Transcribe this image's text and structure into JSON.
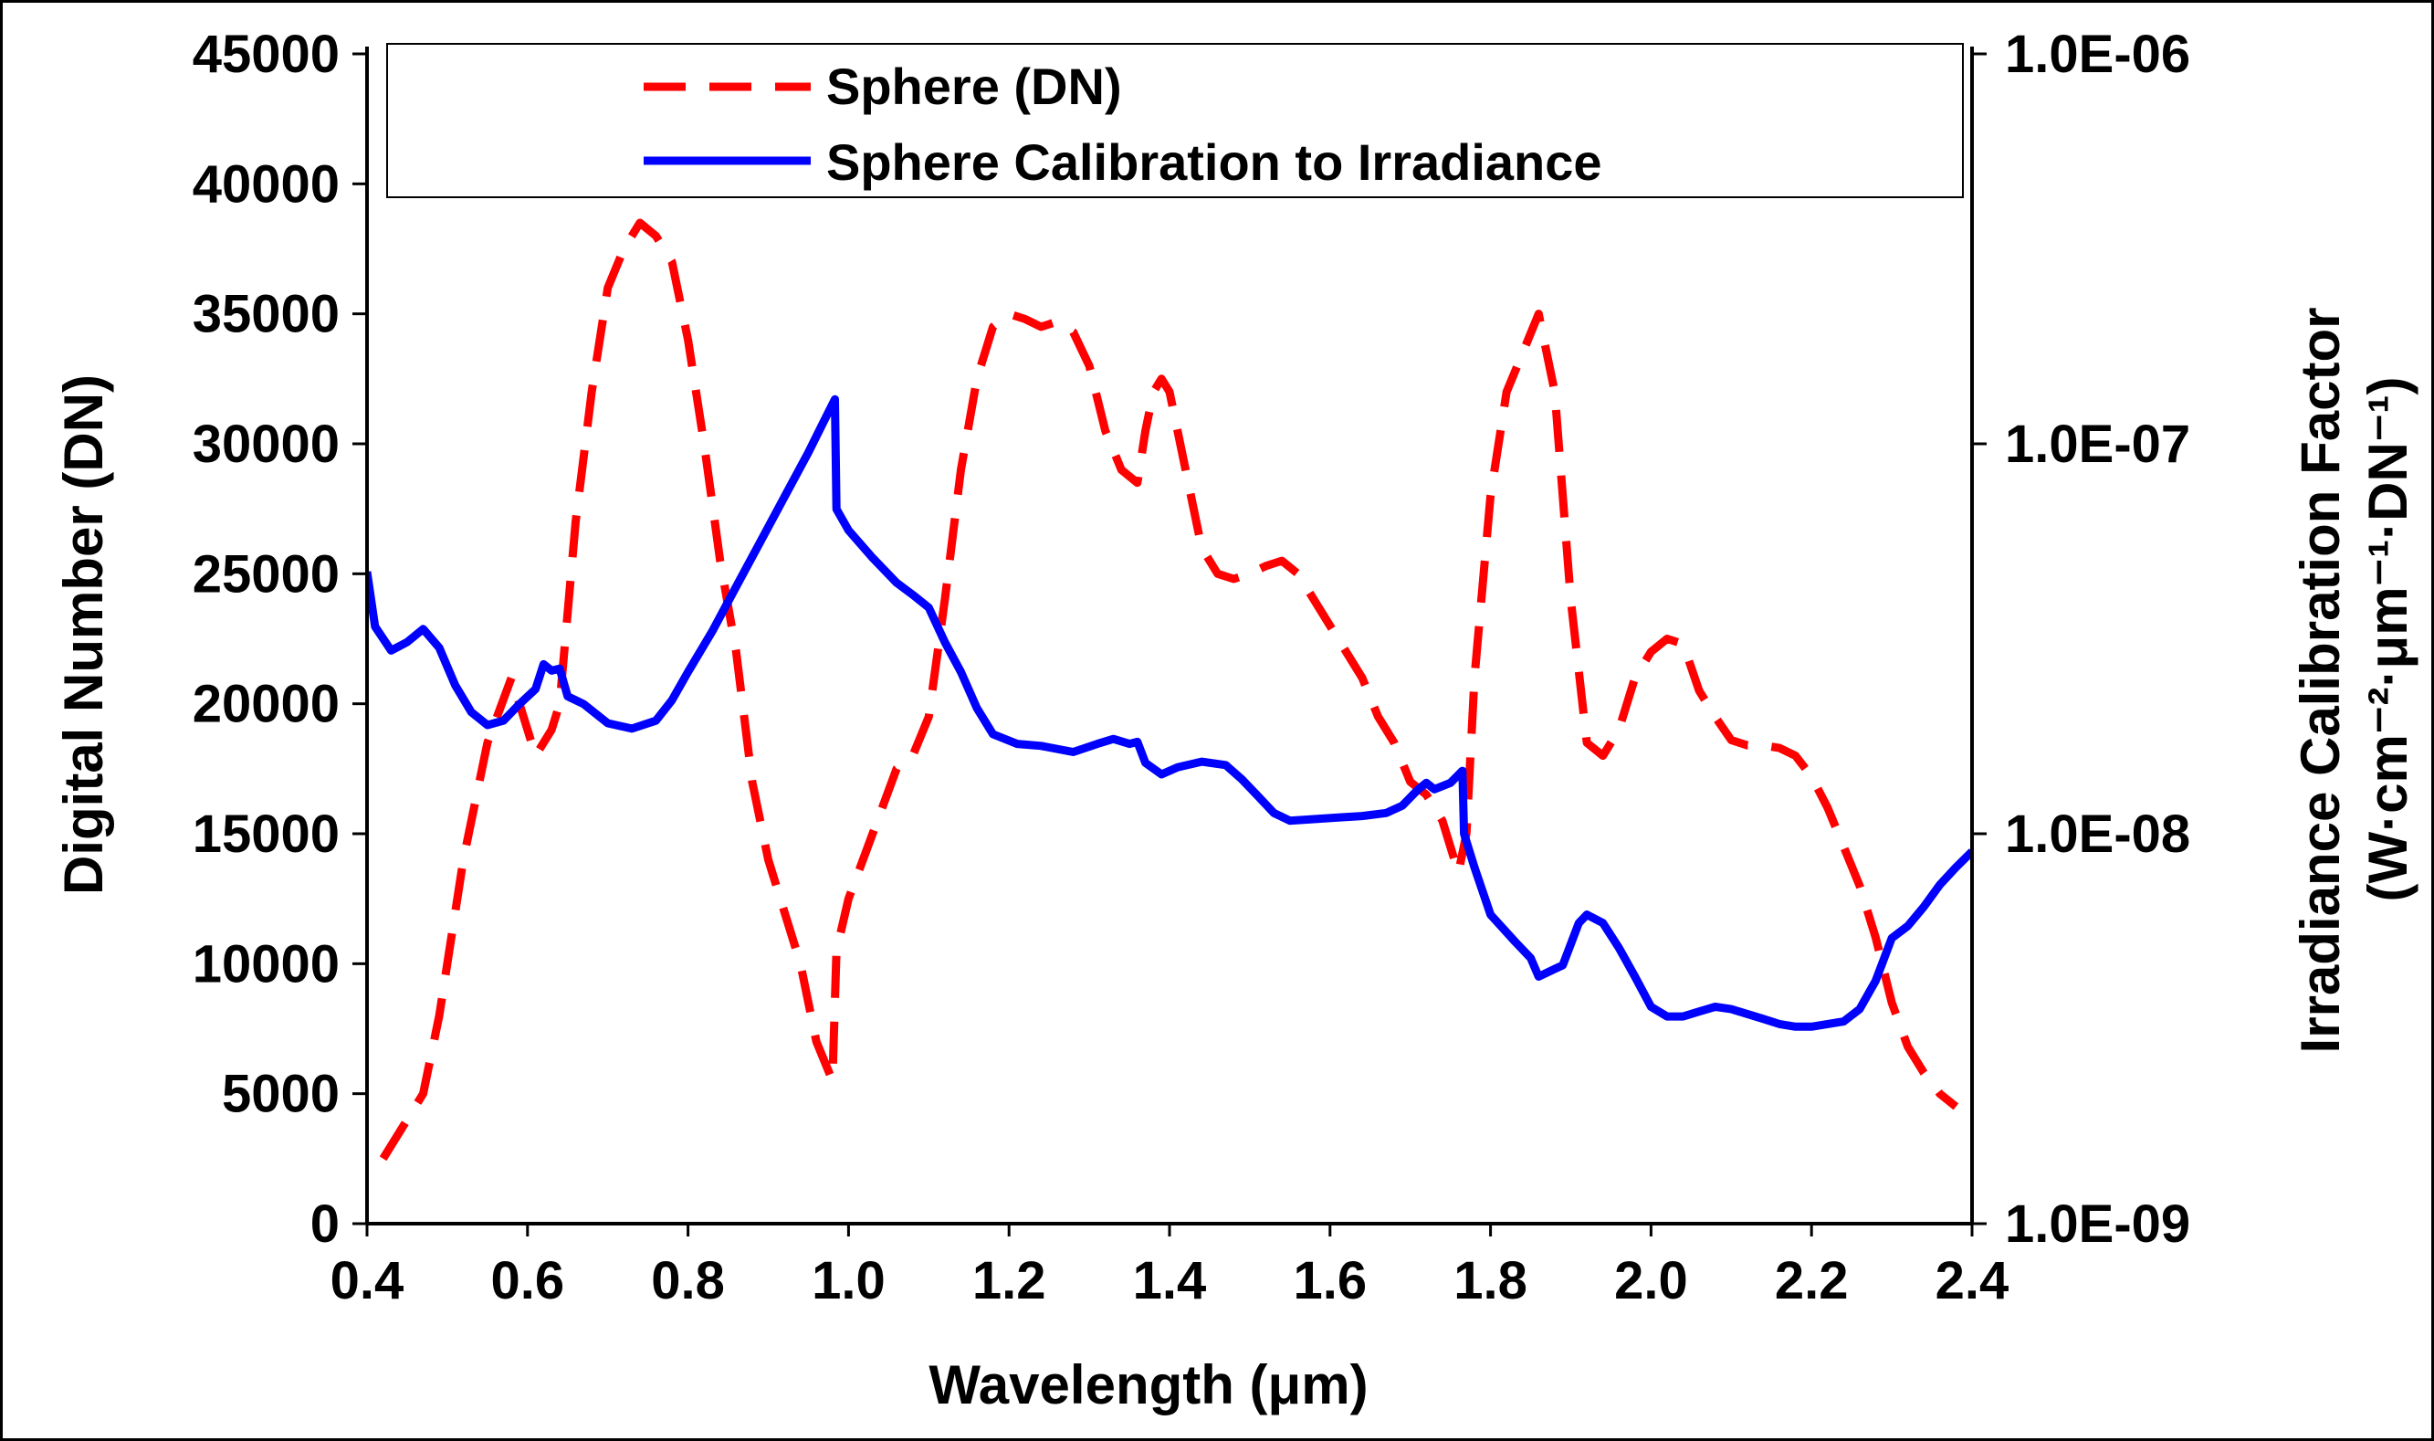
{
  "chart_data": {
    "type": "line",
    "xlabel": "Wavelength (μm)",
    "ylabel_left": "Digital Number (DN)",
    "ylabel_right_line1": "Irradiance Calibration  Factor",
    "ylabel_right_line2": "(W·cm⁻²·μm⁻¹·DN⁻¹)",
    "xlim": [
      0.4,
      2.4
    ],
    "ylim_left": [
      0,
      45000
    ],
    "ylim_right_log": [
      1e-09,
      1e-06
    ],
    "x_ticks": [
      "0.4",
      "0.6",
      "0.8",
      "1.0",
      "1.2",
      "1.4",
      "1.6",
      "1.8",
      "2.0",
      "2.2",
      "2.4"
    ],
    "y_left_ticks": [
      "0",
      "5000",
      "10000",
      "15000",
      "20000",
      "25000",
      "30000",
      "35000",
      "40000",
      "45000"
    ],
    "y_right_ticks": [
      "1.0E-09",
      "1.0E-08",
      "1.0E-07",
      "1.0E-06"
    ],
    "legend": [
      {
        "label": "Sphere (DN)",
        "style": "dashed",
        "color": "#ff0000"
      },
      {
        "label": "Sphere Calibration to Irradiance",
        "style": "solid",
        "color": "#0000ff"
      }
    ],
    "series": [
      {
        "name": "Sphere (DN)",
        "axis": "left",
        "color": "#ff0000",
        "points": [
          [
            0.42,
            2500
          ],
          [
            0.44,
            3500
          ],
          [
            0.47,
            5000
          ],
          [
            0.49,
            8000
          ],
          [
            0.52,
            14000
          ],
          [
            0.55,
            18500
          ],
          [
            0.58,
            21000
          ],
          [
            0.61,
            18000
          ],
          [
            0.63,
            19000
          ],
          [
            0.64,
            20000
          ],
          [
            0.66,
            27000
          ],
          [
            0.68,
            32000
          ],
          [
            0.7,
            36000
          ],
          [
            0.72,
            37500
          ],
          [
            0.74,
            38500
          ],
          [
            0.76,
            38000
          ],
          [
            0.78,
            37000
          ],
          [
            0.8,
            34000
          ],
          [
            0.82,
            30000
          ],
          [
            0.84,
            25500
          ],
          [
            0.86,
            22000
          ],
          [
            0.88,
            17000
          ],
          [
            0.9,
            14000
          ],
          [
            0.92,
            12000
          ],
          [
            0.94,
            10000
          ],
          [
            0.96,
            7000
          ],
          [
            0.98,
            5500
          ],
          [
            0.985,
            10500
          ],
          [
            1.0,
            12500
          ],
          [
            1.03,
            15000
          ],
          [
            1.06,
            17500
          ],
          [
            1.08,
            18000
          ],
          [
            1.1,
            19500
          ],
          [
            1.12,
            24000
          ],
          [
            1.14,
            29000
          ],
          [
            1.16,
            32500
          ],
          [
            1.18,
            34500
          ],
          [
            1.2,
            35000
          ],
          [
            1.22,
            34800
          ],
          [
            1.24,
            34500
          ],
          [
            1.26,
            34700
          ],
          [
            1.28,
            34300
          ],
          [
            1.3,
            33000
          ],
          [
            1.32,
            30500
          ],
          [
            1.34,
            29000
          ],
          [
            1.36,
            28500
          ],
          [
            1.37,
            30500
          ],
          [
            1.38,
            32000
          ],
          [
            1.39,
            32500
          ],
          [
            1.4,
            32000
          ],
          [
            1.42,
            29000
          ],
          [
            1.44,
            26000
          ],
          [
            1.46,
            25000
          ],
          [
            1.48,
            24800
          ],
          [
            1.5,
            25000
          ],
          [
            1.52,
            25300
          ],
          [
            1.54,
            25500
          ],
          [
            1.56,
            25000
          ],
          [
            1.58,
            24000
          ],
          [
            1.6,
            23000
          ],
          [
            1.62,
            22000
          ],
          [
            1.64,
            21000
          ],
          [
            1.66,
            19500
          ],
          [
            1.68,
            18500
          ],
          [
            1.7,
            17000
          ],
          [
            1.72,
            16500
          ],
          [
            1.74,
            15500
          ],
          [
            1.76,
            13500
          ],
          [
            1.77,
            15000
          ],
          [
            1.78,
            21000
          ],
          [
            1.8,
            28000
          ],
          [
            1.82,
            32000
          ],
          [
            1.84,
            33500
          ],
          [
            1.86,
            35000
          ],
          [
            1.88,
            32000
          ],
          [
            1.9,
            24000
          ],
          [
            1.92,
            18500
          ],
          [
            1.94,
            18000
          ],
          [
            1.96,
            19000
          ],
          [
            1.98,
            21000
          ],
          [
            2.0,
            22000
          ],
          [
            2.02,
            22500
          ],
          [
            2.04,
            22300
          ],
          [
            2.06,
            20500
          ],
          [
            2.08,
            19500
          ],
          [
            2.1,
            18600
          ],
          [
            2.12,
            18400
          ],
          [
            2.14,
            18400
          ],
          [
            2.16,
            18300
          ],
          [
            2.18,
            18000
          ],
          [
            2.2,
            17200
          ],
          [
            2.22,
            16000
          ],
          [
            2.24,
            14500
          ],
          [
            2.26,
            13000
          ],
          [
            2.28,
            11000
          ],
          [
            2.3,
            8500
          ],
          [
            2.32,
            6800
          ],
          [
            2.34,
            5800
          ],
          [
            2.36,
            5000
          ],
          [
            2.38,
            4500
          ]
        ]
      },
      {
        "name": "Sphere Calibration to Irradiance",
        "axis": "right",
        "color": "#0000ff",
        "points": [
          [
            0.4,
            4.7e-08
          ],
          [
            0.41,
            3.4e-08
          ],
          [
            0.43,
            2.95e-08
          ],
          [
            0.45,
            3.1e-08
          ],
          [
            0.47,
            3.35e-08
          ],
          [
            0.49,
            3e-08
          ],
          [
            0.51,
            2.4e-08
          ],
          [
            0.53,
            2.05e-08
          ],
          [
            0.55,
            1.9e-08
          ],
          [
            0.57,
            1.95e-08
          ],
          [
            0.59,
            2.15e-08
          ],
          [
            0.61,
            2.35e-08
          ],
          [
            0.62,
            2.72e-08
          ],
          [
            0.63,
            2.62e-08
          ],
          [
            0.64,
            2.65e-08
          ],
          [
            0.65,
            2.25e-08
          ],
          [
            0.67,
            2.15e-08
          ],
          [
            0.7,
            1.92e-08
          ],
          [
            0.73,
            1.86e-08
          ],
          [
            0.76,
            1.95e-08
          ],
          [
            0.78,
            2.2e-08
          ],
          [
            0.8,
            2.6e-08
          ],
          [
            0.83,
            3.3e-08
          ],
          [
            0.86,
            4.3e-08
          ],
          [
            0.89,
            5.6e-08
          ],
          [
            0.92,
            7.3e-08
          ],
          [
            0.95,
            9.5e-08
          ],
          [
            0.97,
            1.15e-07
          ],
          [
            0.983,
            1.3e-07
          ],
          [
            0.985,
            6.8e-08
          ],
          [
            1.0,
            6e-08
          ],
          [
            1.03,
            5.1e-08
          ],
          [
            1.06,
            4.4e-08
          ],
          [
            1.08,
            4.1e-08
          ],
          [
            1.1,
            3.8e-08
          ],
          [
            1.12,
            3.1e-08
          ],
          [
            1.14,
            2.6e-08
          ],
          [
            1.16,
            2.1e-08
          ],
          [
            1.18,
            1.8e-08
          ],
          [
            1.21,
            1.7e-08
          ],
          [
            1.24,
            1.68e-08
          ],
          [
            1.28,
            1.62e-08
          ],
          [
            1.31,
            1.7e-08
          ],
          [
            1.33,
            1.75e-08
          ],
          [
            1.35,
            1.7e-08
          ],
          [
            1.36,
            1.72e-08
          ],
          [
            1.37,
            1.52e-08
          ],
          [
            1.39,
            1.42e-08
          ],
          [
            1.41,
            1.48e-08
          ],
          [
            1.44,
            1.53e-08
          ],
          [
            1.47,
            1.5e-08
          ],
          [
            1.49,
            1.38e-08
          ],
          [
            1.51,
            1.25e-08
          ],
          [
            1.53,
            1.13e-08
          ],
          [
            1.55,
            1.08e-08
          ],
          [
            1.58,
            1.09e-08
          ],
          [
            1.61,
            1.1e-08
          ],
          [
            1.64,
            1.11e-08
          ],
          [
            1.67,
            1.13e-08
          ],
          [
            1.69,
            1.18e-08
          ],
          [
            1.71,
            1.3e-08
          ],
          [
            1.72,
            1.35e-08
          ],
          [
            1.73,
            1.3e-08
          ],
          [
            1.75,
            1.35e-08
          ],
          [
            1.765,
            1.45e-08
          ],
          [
            1.767,
            1e-08
          ],
          [
            1.78,
            8.2e-09
          ],
          [
            1.8,
            6.2e-09
          ],
          [
            1.83,
            5.3e-09
          ],
          [
            1.85,
            4.8e-09
          ],
          [
            1.86,
            4.3e-09
          ],
          [
            1.88,
            4.5e-09
          ],
          [
            1.89,
            4.6e-09
          ],
          [
            1.91,
            5.9e-09
          ],
          [
            1.92,
            6.2e-09
          ],
          [
            1.94,
            5.9e-09
          ],
          [
            1.96,
            5.1e-09
          ],
          [
            1.98,
            4.3e-09
          ],
          [
            2.0,
            3.6e-09
          ],
          [
            2.02,
            3.4e-09
          ],
          [
            2.04,
            3.4e-09
          ],
          [
            2.06,
            3.5e-09
          ],
          [
            2.08,
            3.6e-09
          ],
          [
            2.1,
            3.55e-09
          ],
          [
            2.12,
            3.45e-09
          ],
          [
            2.14,
            3.35e-09
          ],
          [
            2.16,
            3.25e-09
          ],
          [
            2.18,
            3.2e-09
          ],
          [
            2.2,
            3.2e-09
          ],
          [
            2.22,
            3.25e-09
          ],
          [
            2.24,
            3.3e-09
          ],
          [
            2.26,
            3.55e-09
          ],
          [
            2.28,
            4.2e-09
          ],
          [
            2.3,
            5.4e-09
          ],
          [
            2.32,
            5.8e-09
          ],
          [
            2.34,
            6.5e-09
          ],
          [
            2.36,
            7.4e-09
          ],
          [
            2.38,
            8.2e-09
          ],
          [
            2.4,
            9e-09
          ]
        ]
      }
    ]
  }
}
